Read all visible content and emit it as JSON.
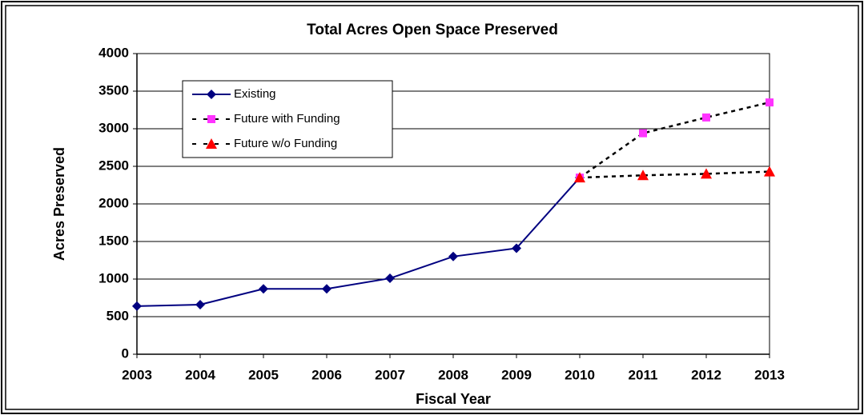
{
  "chart_data": {
    "type": "line",
    "title": "Total Acres Open Space Preserved",
    "x_label": "Fiscal Year",
    "y_label": "Acres Preserved",
    "categories": [
      "2003",
      "2004",
      "2005",
      "2006",
      "2007",
      "2008",
      "2009",
      "2010",
      "2011",
      "2012",
      "2013"
    ],
    "series": [
      {
        "name": "Existing",
        "color": "#000080",
        "line_color": "#000080",
        "marker": "diamond",
        "dash": false,
        "values": [
          640,
          660,
          870,
          870,
          1010,
          1300,
          1410,
          2350,
          null,
          null,
          null
        ]
      },
      {
        "name": "Future with Funding",
        "color": "#ff33ff",
        "line_color": "#000000",
        "marker": "square",
        "dash": true,
        "values": [
          null,
          null,
          null,
          null,
          null,
          null,
          null,
          2350,
          2940,
          3150,
          3350
        ]
      },
      {
        "name": "Future w/o Funding",
        "color": "#ff0000",
        "line_color": "#000000",
        "marker": "triangle",
        "dash": true,
        "values": [
          null,
          null,
          null,
          null,
          null,
          null,
          null,
          2350,
          2380,
          2400,
          2430
        ]
      }
    ],
    "ylim": [
      0,
      4000
    ],
    "yticks": [
      0,
      500,
      1000,
      1500,
      2000,
      2500,
      3000,
      3500,
      4000
    ],
    "grid": true,
    "legend": "upper left"
  }
}
